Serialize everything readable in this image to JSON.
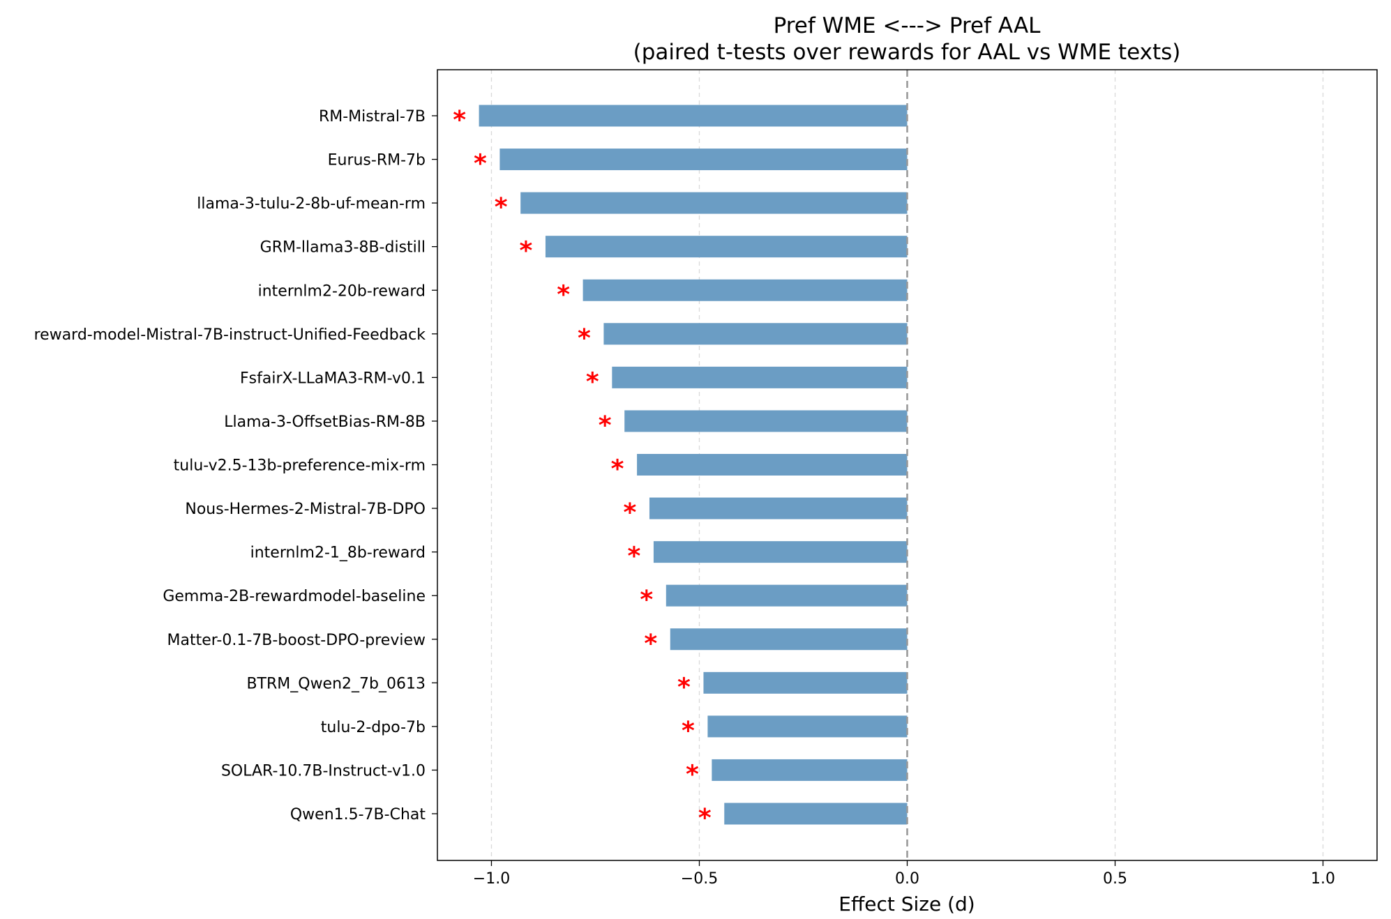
{
  "colors": {
    "bar": "#6b9dc4",
    "significance": "#ff0000",
    "grid": "#d9d9d9",
    "zero_line": "#999999",
    "frame": "#000000"
  },
  "chart_data": {
    "type": "bar",
    "orientation": "horizontal",
    "title": "Pref WME <---> Pref AAL",
    "subtitle": "(paired t-tests over rewards for AAL vs WME texts)",
    "xlabel": "Effect Size (d)",
    "ylabel": "",
    "xlim": [
      -1.13,
      1.13
    ],
    "x_ticks": [
      -1.0,
      -0.5,
      0.0,
      0.5,
      1.0
    ],
    "x_tick_labels": [
      "−1.0",
      "−0.5",
      "0.0",
      "0.5",
      "1.0"
    ],
    "grid": "vertical, dashed",
    "reference_line": 0.0,
    "significance_marker": "*",
    "categories": [
      "RM-Mistral-7B",
      "Eurus-RM-7b",
      "llama-3-tulu-2-8b-uf-mean-rm",
      "GRM-llama3-8B-distill",
      "internlm2-20b-reward",
      "reward-model-Mistral-7B-instruct-Unified-Feedback",
      "FsfairX-LLaMA3-RM-v0.1",
      "Llama-3-OffsetBias-RM-8B",
      "tulu-v2.5-13b-preference-mix-rm",
      "Nous-Hermes-2-Mistral-7B-DPO",
      "internlm2-1_8b-reward",
      "Gemma-2B-rewardmodel-baseline",
      "Matter-0.1-7B-boost-DPO-preview",
      "BTRM_Qwen2_7b_0613",
      "tulu-2-dpo-7b",
      "SOLAR-10.7B-Instruct-v1.0",
      "Qwen1.5-7B-Chat"
    ],
    "values": [
      -1.03,
      -0.98,
      -0.93,
      -0.87,
      -0.78,
      -0.73,
      -0.71,
      -0.68,
      -0.65,
      -0.62,
      -0.61,
      -0.58,
      -0.57,
      -0.49,
      -0.48,
      -0.47,
      -0.44
    ],
    "significant": [
      true,
      true,
      true,
      true,
      true,
      true,
      true,
      true,
      true,
      true,
      true,
      true,
      true,
      true,
      true,
      true,
      true
    ]
  }
}
